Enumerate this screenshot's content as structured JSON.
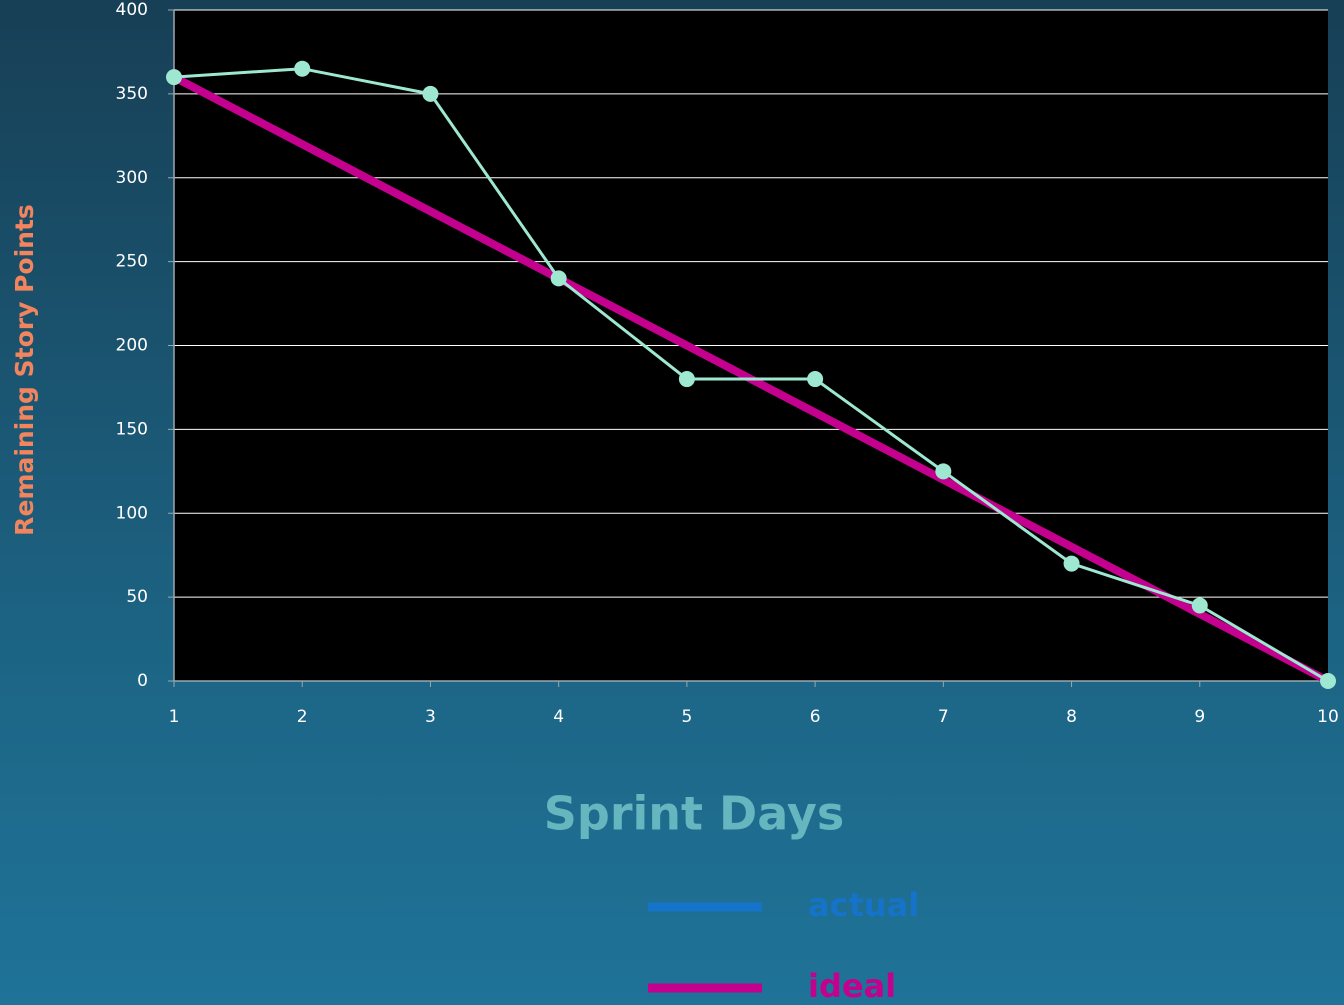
{
  "chart_data": {
    "type": "line",
    "x_label": "Sprint Days",
    "y_label": "Remaining Story Points",
    "x": [
      1,
      2,
      3,
      4,
      5,
      6,
      7,
      8,
      9,
      10
    ],
    "xlim": [
      1,
      10
    ],
    "ylim": [
      0,
      400
    ],
    "yticks": [
      0,
      50,
      100,
      150,
      200,
      250,
      300,
      350,
      400
    ],
    "grid": true,
    "legend": "bottom",
    "series": [
      {
        "name": "actual",
        "color": "#9ee8d2",
        "legend_color": "#1573c9",
        "markers": true,
        "values": [
          360,
          365,
          350,
          240,
          180,
          180,
          125,
          70,
          45,
          0
        ]
      },
      {
        "name": "ideal",
        "color": "#c4008e",
        "legend_color": "#c4008e",
        "markers": false,
        "values": [
          360,
          320,
          280,
          240,
          200,
          160,
          120,
          80,
          40,
          0
        ]
      }
    ]
  }
}
